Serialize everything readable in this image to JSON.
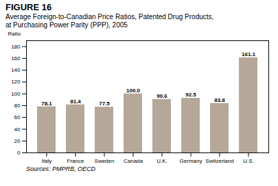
{
  "chart_data": {
    "type": "bar",
    "title": "FIGURE 16",
    "subtitle": [
      "Average Foreign-to-Canadian Price Ratios, Patented Drug Products,",
      "at Purchasing Power Parity (PPP), 2005"
    ],
    "caption": "Sources: PMPRB, OECD",
    "ylabel": "Ratio",
    "categories": [
      "Italy",
      "France",
      "Sweden",
      "Canada",
      "U.K.",
      "Germany",
      "Switzerland",
      "U.S."
    ],
    "values": [
      78.1,
      81.4,
      77.5,
      100.0,
      90.6,
      92.5,
      83.8,
      161.1
    ],
    "value_labels": [
      "78.1",
      "81.4",
      "77.5",
      "100.0",
      "90.6",
      "92.5",
      "83.8",
      "161.1"
    ],
    "data_labels": true,
    "color": "#b5a898",
    "ylim": [
      0,
      190
    ],
    "yticks": [
      0,
      20,
      40,
      60,
      80,
      100,
      120,
      140,
      160,
      180
    ],
    "grid": false
  }
}
